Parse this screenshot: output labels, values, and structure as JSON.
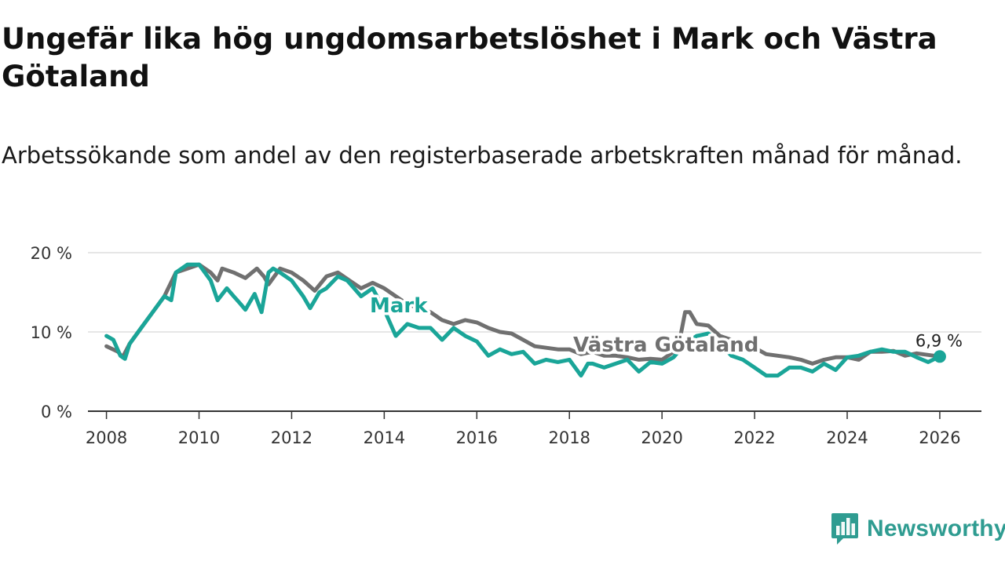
{
  "title": "Ungefär lika hög ungdomsarbetslöshet i Mark och Västra Götaland",
  "subtitle": "Arbetssökande som andel av den registerbaserade arbetskraften månad för månad.",
  "brand": "Newsworthy",
  "colors": {
    "mark": "#1aa598",
    "vg": "#707070",
    "grid": "#dddddd",
    "axis": "#333333",
    "brand": "#2f9c91"
  },
  "chart_data": {
    "type": "line",
    "title": "Ungefär lika hög ungdomsarbetslöshet i Mark och Västra Götaland",
    "xlabel": "",
    "ylabel": "",
    "xlim": [
      2007.6,
      2026.9
    ],
    "ylim": [
      0,
      20
    ],
    "y_ticks": [
      0,
      10,
      20
    ],
    "y_tick_labels": [
      "0 %",
      "10 %",
      "20 %"
    ],
    "x_ticks": [
      2008,
      2010,
      2012,
      2014,
      2016,
      2018,
      2020,
      2022,
      2024,
      2026
    ],
    "x_tick_labels": [
      "2008",
      "2010",
      "2012",
      "2014",
      "2016",
      "2018",
      "2020",
      "2022",
      "2024",
      "2026"
    ],
    "grid": true,
    "end_value_label": "6,9 %",
    "series": [
      {
        "name": "Västra Götaland",
        "label": "Västra Götaland",
        "color": "#707070",
        "x": [
          2008.0,
          2008.25,
          2008.35,
          2008.5,
          2008.75,
          2009.0,
          2009.25,
          2009.5,
          2009.75,
          2010.0,
          2010.25,
          2010.4,
          2010.5,
          2010.75,
          2011.0,
          2011.25,
          2011.4,
          2011.5,
          2011.75,
          2012.0,
          2012.25,
          2012.5,
          2012.75,
          2013.0,
          2013.25,
          2013.5,
          2013.75,
          2014.0,
          2014.25,
          2014.5,
          2014.75,
          2015.0,
          2015.25,
          2015.5,
          2015.75,
          2016.0,
          2016.25,
          2016.5,
          2016.75,
          2017.0,
          2017.25,
          2017.5,
          2017.75,
          2018.0,
          2018.25,
          2018.5,
          2018.75,
          2019.0,
          2019.25,
          2019.5,
          2019.75,
          2020.0,
          2020.25,
          2020.4,
          2020.5,
          2020.6,
          2020.75,
          2021.0,
          2021.25,
          2021.5,
          2021.75,
          2022.0,
          2022.25,
          2022.5,
          2022.75,
          2023.0,
          2023.25,
          2023.5,
          2023.75,
          2024.0,
          2024.25,
          2024.5,
          2024.75,
          2025.0,
          2025.25,
          2025.5,
          2025.75,
          2026.0
        ],
        "values": [
          8.2,
          7.5,
          6.8,
          8.5,
          10.5,
          12.5,
          14.5,
          17.5,
          18.0,
          18.5,
          17.5,
          16.5,
          18.0,
          17.5,
          16.8,
          18.0,
          17.0,
          16.0,
          18.0,
          17.5,
          16.5,
          15.2,
          17.0,
          17.5,
          16.5,
          15.5,
          16.2,
          15.5,
          14.5,
          13.5,
          13.0,
          12.5,
          11.5,
          11.0,
          11.5,
          11.2,
          10.5,
          10.0,
          9.8,
          9.0,
          8.2,
          8.0,
          7.8,
          7.8,
          7.2,
          7.5,
          7.0,
          7.0,
          6.8,
          6.5,
          6.6,
          6.5,
          7.5,
          9.5,
          12.5,
          12.5,
          11.0,
          10.8,
          9.5,
          9.0,
          8.5,
          8.0,
          7.2,
          7.0,
          6.8,
          6.5,
          6.0,
          6.5,
          6.8,
          6.8,
          6.5,
          7.5,
          7.5,
          7.6,
          7.0,
          7.3,
          7.1,
          6.9
        ]
      },
      {
        "name": "Mark",
        "label": "Mark",
        "color": "#1aa598",
        "x": [
          2008.0,
          2008.15,
          2008.3,
          2008.4,
          2008.5,
          2008.75,
          2009.0,
          2009.25,
          2009.4,
          2009.5,
          2009.75,
          2010.0,
          2010.25,
          2010.4,
          2010.6,
          2010.75,
          2010.9,
          2011.0,
          2011.2,
          2011.35,
          2011.5,
          2011.6,
          2011.75,
          2012.0,
          2012.25,
          2012.4,
          2012.6,
          2012.75,
          2013.0,
          2013.2,
          2013.35,
          2013.5,
          2013.75,
          2014.0,
          2014.25,
          2014.5,
          2014.75,
          2015.0,
          2015.25,
          2015.5,
          2015.75,
          2016.0,
          2016.25,
          2016.5,
          2016.75,
          2017.0,
          2017.25,
          2017.5,
          2017.75,
          2018.0,
          2018.25,
          2018.4,
          2018.5,
          2018.75,
          2019.0,
          2019.25,
          2019.5,
          2019.75,
          2020.0,
          2020.25,
          2020.5,
          2020.75,
          2021.0,
          2021.25,
          2021.5,
          2021.75,
          2022.0,
          2022.25,
          2022.5,
          2022.75,
          2023.0,
          2023.25,
          2023.5,
          2023.75,
          2024.0,
          2024.25,
          2024.5,
          2024.75,
          2025.0,
          2025.25,
          2025.5,
          2025.75,
          2026.0
        ],
        "values": [
          9.5,
          9.0,
          7.0,
          6.6,
          8.5,
          10.5,
          12.5,
          14.5,
          14.0,
          17.5,
          18.5,
          18.5,
          16.5,
          14.0,
          15.5,
          14.5,
          13.5,
          12.8,
          14.8,
          12.5,
          17.5,
          18.0,
          17.5,
          16.5,
          14.5,
          13.0,
          15.0,
          15.5,
          17.0,
          16.5,
          15.5,
          14.5,
          15.5,
          12.8,
          9.5,
          11.0,
          10.5,
          10.5,
          9.0,
          10.5,
          9.5,
          8.8,
          7.0,
          7.8,
          7.2,
          7.5,
          6.0,
          6.5,
          6.2,
          6.5,
          4.5,
          6.0,
          6.0,
          5.5,
          6.0,
          6.5,
          5.0,
          6.2,
          6.0,
          6.8,
          8.5,
          9.5,
          9.8,
          8.5,
          7.0,
          6.5,
          5.5,
          4.5,
          4.5,
          5.5,
          5.5,
          5.0,
          6.0,
          5.2,
          6.8,
          7.0,
          7.5,
          7.8,
          7.5,
          7.5,
          6.8,
          6.2,
          6.9
        ]
      }
    ]
  }
}
